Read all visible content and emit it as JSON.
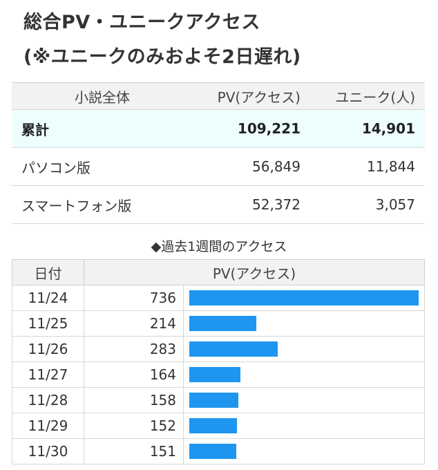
{
  "title": {
    "line1": "総合PV・ユニークアクセス",
    "line2": "(※ユニークのみおよそ2日遅れ)"
  },
  "summary": {
    "headers": [
      "小説全体",
      "PV(アクセス)",
      "ユニーク(人)"
    ],
    "rows": [
      {
        "label": "累計",
        "pv": "109,221",
        "unique": "14,901",
        "highlight": true
      },
      {
        "label": "パソコン版",
        "pv": "56,849",
        "unique": "11,844"
      },
      {
        "label": "スマートフォン版",
        "pv": "52,372",
        "unique": "3,057"
      }
    ]
  },
  "weekly": {
    "title": "◆過去1週間のアクセス",
    "headers": [
      "日付",
      "PV(アクセス)"
    ],
    "bar_color": "#1e96f0",
    "rows": [
      {
        "date": "11/24",
        "pv": "736",
        "value": 736
      },
      {
        "date": "11/25",
        "pv": "214",
        "value": 214
      },
      {
        "date": "11/26",
        "pv": "283",
        "value": 283
      },
      {
        "date": "11/27",
        "pv": "164",
        "value": 164
      },
      {
        "date": "11/28",
        "pv": "158",
        "value": 158
      },
      {
        "date": "11/29",
        "pv": "152",
        "value": 152
      },
      {
        "date": "11/30",
        "pv": "151",
        "value": 151
      }
    ]
  }
}
